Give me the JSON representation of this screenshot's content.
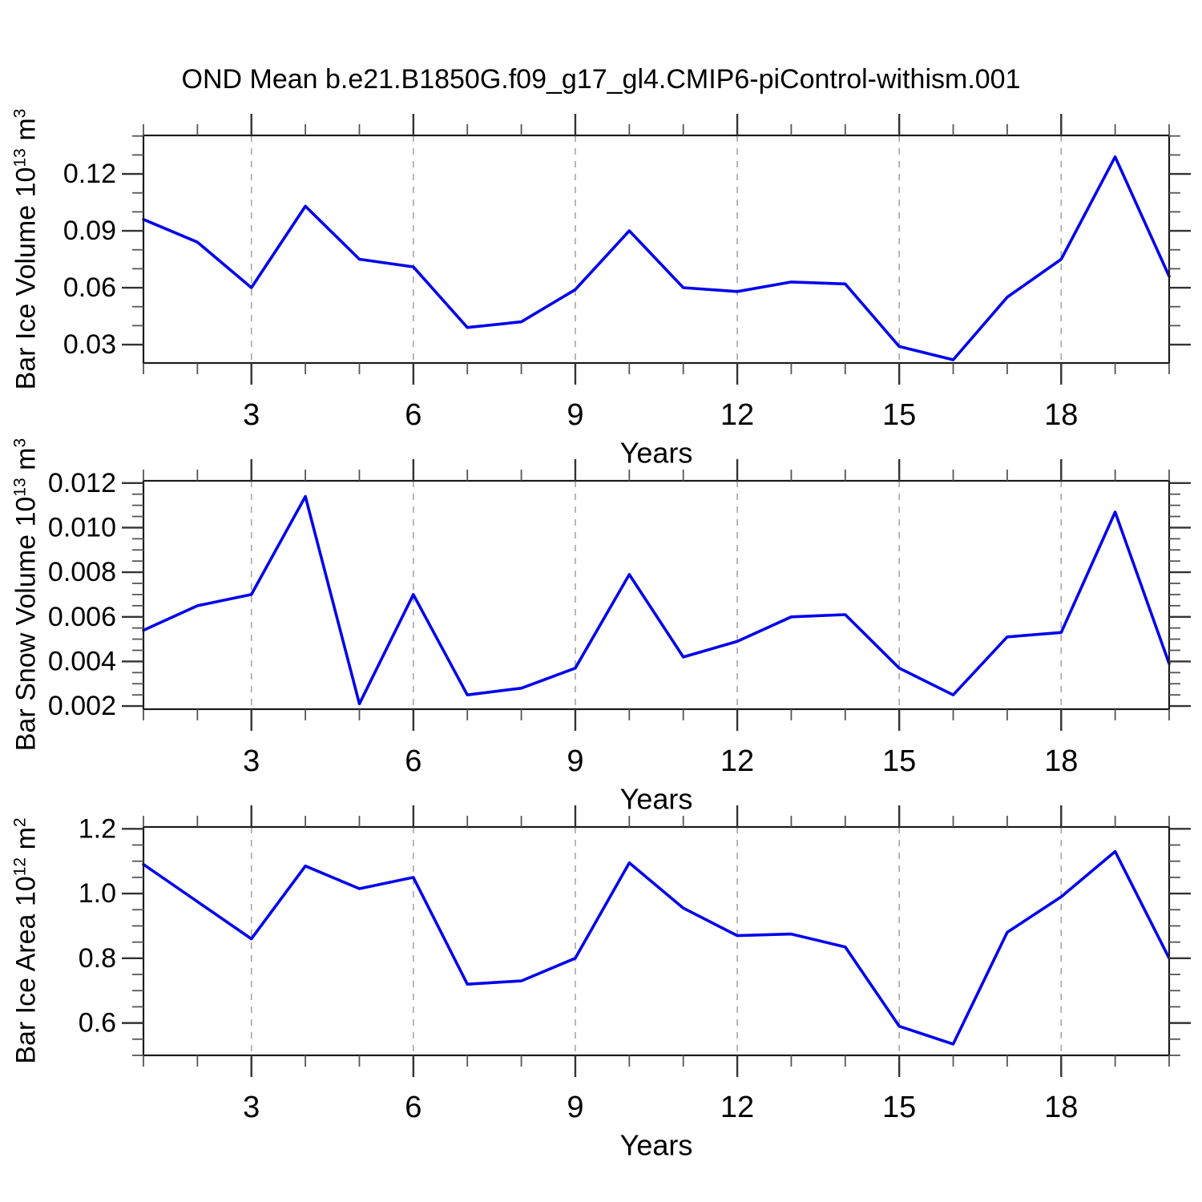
{
  "title": "OND Mean b.e21.B1850G.f09_g17_gl4.CMIP6-piControl-withism.001",
  "colors": {
    "line": "#0000ee",
    "axis": "#1a1a1a",
    "major_tick": "#333333",
    "minor_tick": "#555555",
    "grid": "#a6a6a6",
    "text": "#000000"
  },
  "chart_data": [
    {
      "type": "line",
      "name": "bar-ice-volume",
      "ylabel_base": "Bar Ice Volume 10",
      "ylabel_exp": "13",
      "ylabel_unit": " m",
      "ylabel_unit_exp": "3",
      "xlabel": "Years",
      "x": [
        1,
        2,
        3,
        4,
        5,
        6,
        7,
        8,
        9,
        10,
        11,
        12,
        13,
        14,
        15,
        16,
        17,
        18,
        19,
        20
      ],
      "values": [
        0.096,
        0.084,
        0.06,
        0.103,
        0.075,
        0.071,
        0.039,
        0.042,
        0.059,
        0.09,
        0.06,
        0.058,
        0.063,
        0.062,
        0.029,
        0.022,
        0.055,
        0.075,
        0.129,
        0.066
      ],
      "xlim": [
        1,
        20
      ],
      "ylim": [
        0.0203,
        0.1403
      ],
      "ytick_major": [
        0.03,
        0.06,
        0.09,
        0.12
      ],
      "ytick_labels": [
        "0.03",
        "0.06",
        "0.09",
        "0.12"
      ],
      "ytick_minor_step": 0.01,
      "xtick_labeled": [
        3,
        6,
        9,
        12,
        15,
        18
      ],
      "grid_x": [
        3,
        6,
        9,
        12,
        15,
        18
      ],
      "grid_on": true,
      "legend": "none"
    },
    {
      "type": "line",
      "name": "bar-snow-volume",
      "ylabel_base": "Bar Snow Volume 10",
      "ylabel_exp": "13",
      "ylabel_unit": " m",
      "ylabel_unit_exp": "3",
      "xlabel": "Years",
      "x": [
        1,
        2,
        3,
        4,
        5,
        6,
        7,
        8,
        9,
        10,
        11,
        12,
        13,
        14,
        15,
        16,
        17,
        18,
        19,
        20
      ],
      "values": [
        0.0054,
        0.0065,
        0.007,
        0.0114,
        0.0021,
        0.007,
        0.0025,
        0.0028,
        0.0037,
        0.0079,
        0.0042,
        0.0049,
        0.006,
        0.0061,
        0.0037,
        0.0025,
        0.0051,
        0.0053,
        0.0107,
        0.0039
      ],
      "xlim": [
        1,
        20
      ],
      "ylim": [
        0.00186,
        0.0121
      ],
      "ytick_major": [
        0.002,
        0.004,
        0.006,
        0.008,
        0.01,
        0.012
      ],
      "ytick_labels": [
        "0.002",
        "0.004",
        "0.006",
        "0.008",
        "0.010",
        "0.012"
      ],
      "ytick_minor_step": 0.0005,
      "xtick_labeled": [
        3,
        6,
        9,
        12,
        15,
        18
      ],
      "grid_x": [
        3,
        6,
        9,
        12,
        15,
        18
      ],
      "grid_on": true,
      "legend": "none"
    },
    {
      "type": "line",
      "name": "bar-ice-area",
      "ylabel_base": "Bar Ice Area 10",
      "ylabel_exp": "12",
      "ylabel_unit": " m",
      "ylabel_unit_exp": "2",
      "xlabel": "Years",
      "x": [
        1,
        2,
        3,
        4,
        5,
        6,
        7,
        8,
        9,
        10,
        11,
        12,
        13,
        14,
        15,
        16,
        17,
        18,
        19,
        20
      ],
      "values": [
        1.09,
        0.975,
        0.86,
        1.085,
        1.015,
        1.05,
        0.72,
        0.73,
        0.8,
        1.095,
        0.955,
        0.87,
        0.875,
        0.835,
        0.59,
        0.535,
        0.88,
        0.99,
        1.13,
        0.8
      ],
      "xlim": [
        1,
        20
      ],
      "ylim": [
        0.5,
        1.2057
      ],
      "ytick_major": [
        0.6,
        0.8,
        1.0,
        1.2
      ],
      "ytick_labels": [
        "0.6",
        "0.8",
        "1.0",
        "1.2"
      ],
      "ytick_minor_step": 0.05,
      "xtick_labeled": [
        3,
        6,
        9,
        12,
        15,
        18
      ],
      "grid_x": [
        3,
        6,
        9,
        12,
        15,
        18
      ],
      "grid_on": true,
      "legend": "none"
    }
  ]
}
